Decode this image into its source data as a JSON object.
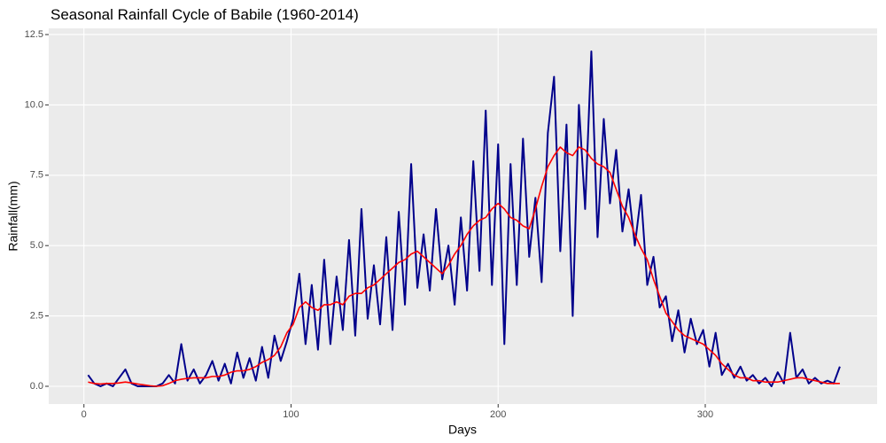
{
  "chart_data": {
    "type": "line",
    "title": "Seasonal Rainfall Cycle of Babile (1960-2014)",
    "x_label": "Days",
    "y_label": "Rainfall(mm)",
    "x": [
      2,
      5,
      8,
      11,
      14,
      17,
      20,
      23,
      26,
      29,
      32,
      35,
      38,
      41,
      44,
      47,
      50,
      53,
      56,
      59,
      62,
      65,
      68,
      71,
      74,
      77,
      80,
      83,
      86,
      89,
      92,
      95,
      98,
      101,
      104,
      107,
      110,
      113,
      116,
      119,
      122,
      125,
      128,
      131,
      134,
      137,
      140,
      143,
      146,
      149,
      152,
      155,
      158,
      161,
      164,
      167,
      170,
      173,
      176,
      179,
      182,
      185,
      188,
      191,
      194,
      197,
      200,
      203,
      206,
      209,
      212,
      215,
      218,
      221,
      224,
      227,
      230,
      233,
      236,
      239,
      242,
      245,
      248,
      251,
      254,
      257,
      260,
      263,
      266,
      269,
      272,
      275,
      278,
      281,
      284,
      287,
      290,
      293,
      296,
      299,
      302,
      305,
      308,
      311,
      314,
      317,
      320,
      323,
      326,
      329,
      332,
      335,
      338,
      341,
      344,
      347,
      350,
      353,
      356,
      359,
      362,
      365
    ],
    "series": [
      {
        "color": "#00008b",
        "values": [
          0.4,
          0.1,
          0.0,
          0.1,
          0.0,
          0.3,
          0.6,
          0.1,
          0.0,
          0.0,
          0.0,
          0.0,
          0.1,
          0.4,
          0.1,
          1.5,
          0.2,
          0.6,
          0.1,
          0.4,
          0.9,
          0.2,
          0.8,
          0.1,
          1.2,
          0.3,
          1.0,
          0.2,
          1.4,
          0.3,
          1.8,
          0.9,
          1.6,
          2.4,
          4.0,
          1.5,
          3.6,
          1.3,
          4.5,
          1.5,
          3.9,
          2.0,
          5.2,
          1.8,
          6.3,
          2.4,
          4.3,
          2.2,
          5.3,
          2.0,
          6.2,
          2.9,
          7.9,
          3.5,
          5.4,
          3.4,
          6.3,
          3.8,
          5.0,
          2.9,
          6.0,
          3.4,
          8.0,
          4.1,
          9.8,
          3.6,
          8.6,
          1.5,
          7.9,
          3.6,
          8.8,
          4.6,
          6.7,
          3.7,
          9.0,
          11.0,
          4.8,
          9.3,
          2.5,
          10.0,
          6.3,
          11.9,
          5.3,
          9.5,
          6.5,
          8.4,
          5.5,
          7.0,
          5.0,
          6.8,
          3.6,
          4.6,
          2.8,
          3.2,
          1.6,
          2.7,
          1.2,
          2.4,
          1.5,
          2.0,
          0.7,
          1.9,
          0.4,
          0.8,
          0.3,
          0.7,
          0.2,
          0.4,
          0.1,
          0.3,
          0.0,
          0.5,
          0.1,
          1.9,
          0.3,
          0.6,
          0.1,
          0.3,
          0.1,
          0.2,
          0.1,
          0.7
        ]
      },
      {
        "color": "#ff0000",
        "values": [
          0.15,
          0.1,
          0.08,
          0.1,
          0.1,
          0.12,
          0.15,
          0.12,
          0.08,
          0.05,
          0.02,
          0.0,
          0.02,
          0.1,
          0.2,
          0.25,
          0.28,
          0.3,
          0.3,
          0.3,
          0.35,
          0.35,
          0.4,
          0.5,
          0.55,
          0.55,
          0.6,
          0.7,
          0.85,
          0.95,
          1.1,
          1.4,
          1.9,
          2.2,
          2.8,
          3.0,
          2.8,
          2.7,
          2.9,
          2.9,
          3.0,
          2.9,
          3.2,
          3.3,
          3.3,
          3.5,
          3.6,
          3.8,
          4.0,
          4.2,
          4.4,
          4.5,
          4.7,
          4.8,
          4.6,
          4.4,
          4.2,
          4.0,
          4.3,
          4.7,
          5.0,
          5.4,
          5.7,
          5.9,
          6.0,
          6.3,
          6.5,
          6.3,
          6.0,
          5.9,
          5.7,
          5.6,
          6.3,
          7.1,
          7.8,
          8.2,
          8.5,
          8.3,
          8.2,
          8.5,
          8.4,
          8.1,
          7.9,
          7.8,
          7.6,
          7.0,
          6.4,
          6.0,
          5.4,
          4.9,
          4.5,
          3.8,
          3.2,
          2.6,
          2.3,
          2.0,
          1.8,
          1.7,
          1.6,
          1.5,
          1.3,
          1.1,
          0.8,
          0.6,
          0.4,
          0.3,
          0.3,
          0.2,
          0.2,
          0.15,
          0.15,
          0.15,
          0.2,
          0.25,
          0.3,
          0.3,
          0.25,
          0.2,
          0.15,
          0.1,
          0.1,
          0.1
        ]
      }
    ],
    "xlim": [
      -17,
      383
    ],
    "ylim": [
      -0.63,
      12.72
    ],
    "xticks": [
      0,
      100,
      200,
      300
    ],
    "yticks": [
      {
        "value": 0,
        "label": "0.0"
      },
      2.5,
      {
        "value": 5,
        "label": "5.0"
      },
      7.5,
      {
        "value": 10,
        "label": "10.0"
      },
      12.5
    ],
    "grid": true
  }
}
